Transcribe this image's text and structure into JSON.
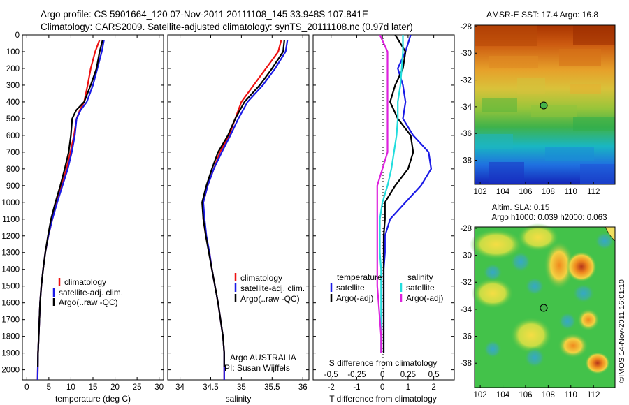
{
  "header": {
    "line1": "Argo profile: CS 5901664_120 07-Nov-2011 20111108_145 33.948S 107.841E",
    "line2": "Climatology: CARS2009. Satellite-adjusted climatology: synTS_20111108.nc (0.97d later)"
  },
  "colors": {
    "climatology": "#ee1111",
    "satellite": "#1a1ae6",
    "argo": "#000000",
    "t_sat": "#1a1ae6",
    "s_sat": "#22dddd",
    "s_argo": "#dd22dd"
  },
  "chart_data": [
    {
      "type": "line",
      "xlabel": "temperature (deg C)",
      "ylabel": "",
      "xlim": [
        -1,
        31
      ],
      "ylim": [
        2060,
        0
      ],
      "y_inverted": true,
      "xticks": [
        0,
        5,
        10,
        15,
        20,
        25,
        30
      ],
      "yticks": [
        0,
        100,
        200,
        300,
        400,
        500,
        600,
        700,
        800,
        900,
        1000,
        1100,
        1200,
        1300,
        1400,
        1500,
        1600,
        1700,
        1800,
        1900,
        2000
      ],
      "legend": [
        "climatology",
        "satellite-adj. clim.",
        "Argo(..raw -QC)"
      ],
      "series": [
        {
          "name": "climatology",
          "color": "#ee1111",
          "x": [
            16.5,
            15.5,
            14.5,
            13.8,
            13.0,
            12.0,
            11.3,
            10.7,
            9.9,
            9.0,
            7.9,
            6.8,
            5.8,
            4.9,
            4.2,
            3.7,
            3.3,
            3.0,
            2.7,
            2.55,
            2.45
          ],
          "y": [
            30,
            100,
            200,
            300,
            400,
            450,
            500,
            600,
            700,
            800,
            900,
            1000,
            1100,
            1200,
            1300,
            1400,
            1500,
            1600,
            1800,
            1900,
            2060
          ]
        },
        {
          "name": "satellite-adj. clim.",
          "color": "#1a1ae6",
          "x": [
            17.5,
            17.0,
            16.0,
            15.0,
            13.6,
            12.2,
            11.3,
            10.9,
            10.2,
            9.3,
            8.1,
            6.9,
            5.8,
            4.9,
            4.2,
            3.7,
            3.3,
            3.0,
            2.7,
            2.55,
            2.45
          ],
          "y": [
            30,
            100,
            200,
            300,
            400,
            450,
            500,
            600,
            700,
            800,
            900,
            1000,
            1100,
            1200,
            1300,
            1400,
            1500,
            1600,
            1800,
            1900,
            2060
          ]
        },
        {
          "name": "Argo(..raw -QC)",
          "color": "#000000",
          "x": [
            17.2,
            16.5,
            15.8,
            14.5,
            13.0,
            11.2,
            10.3,
            10.0,
            9.5,
            8.6,
            7.6,
            6.5,
            5.5,
            4.8,
            4.2,
            3.7,
            3.3,
            3.0,
            2.7,
            2.55,
            2.5
          ],
          "y": [
            30,
            100,
            200,
            300,
            400,
            450,
            500,
            600,
            700,
            800,
            900,
            1000,
            1100,
            1200,
            1300,
            1400,
            1500,
            1600,
            1800,
            1900,
            1985
          ]
        }
      ]
    },
    {
      "type": "line",
      "xlabel": "salinity",
      "ylabel": "",
      "xlim": [
        33.8,
        36.1
      ],
      "ylim": [
        2060,
        0
      ],
      "y_inverted": true,
      "xticks": [
        34,
        34.5,
        35,
        35.5,
        36
      ],
      "legend": [
        "climatology",
        "satellite-adj. clim.",
        "Argo(..raw -QC)"
      ],
      "annotation": [
        "Argo AUSTRALIA",
        "PI: Susan Wijffels"
      ],
      "series": [
        {
          "name": "climatology",
          "color": "#ee1111",
          "x": [
            35.65,
            35.6,
            35.4,
            35.2,
            35.0,
            34.9,
            34.8,
            34.65,
            34.55,
            34.45,
            34.38,
            34.38,
            34.42,
            34.48,
            34.52,
            34.57,
            34.62,
            34.66,
            34.7,
            34.72,
            34.72
          ],
          "y": [
            30,
            100,
            200,
            300,
            400,
            500,
            600,
            700,
            800,
            900,
            1000,
            1100,
            1200,
            1300,
            1400,
            1500,
            1600,
            1700,
            1800,
            1900,
            2060
          ]
        },
        {
          "name": "satellite-adj. clim.",
          "color": "#1a1ae6",
          "x": [
            35.75,
            35.72,
            35.55,
            35.35,
            35.1,
            34.95,
            34.82,
            34.68,
            34.55,
            34.45,
            34.38,
            34.4,
            34.43,
            34.48,
            34.52,
            34.57,
            34.62,
            34.66,
            34.7,
            34.72,
            34.72
          ],
          "y": [
            30,
            100,
            200,
            300,
            400,
            500,
            600,
            700,
            800,
            900,
            1000,
            1100,
            1200,
            1300,
            1400,
            1500,
            1600,
            1700,
            1800,
            1900,
            2060
          ]
        },
        {
          "name": "Argo(..raw -QC)",
          "color": "#000000",
          "x": [
            35.7,
            35.68,
            35.5,
            35.3,
            35.05,
            34.9,
            34.78,
            34.62,
            34.52,
            34.43,
            34.36,
            34.38,
            34.42,
            34.47,
            34.52,
            34.57,
            34.62,
            34.66,
            34.7,
            34.72,
            34.72
          ],
          "y": [
            30,
            100,
            200,
            300,
            400,
            500,
            600,
            700,
            800,
            900,
            1000,
            1100,
            1200,
            1300,
            1400,
            1500,
            1600,
            1700,
            1800,
            1900,
            1985
          ]
        }
      ]
    },
    {
      "type": "line",
      "xlabel": "T difference from climatology",
      "xlabel_top": "S difference from climatology",
      "xlim": [
        -2.7,
        2.8
      ],
      "ylim": [
        2060,
        0
      ],
      "y_inverted": true,
      "xticks": [
        -2,
        -1,
        0,
        1,
        2
      ],
      "xticks_salinity": [
        "-0.5",
        "-0.25",
        "0",
        "0.25",
        "0.5"
      ],
      "legend_temperature": {
        "title": "temperature",
        "items": [
          "satellite",
          "Argo(-adj)"
        ]
      },
      "legend_salinity": {
        "title": "salinity",
        "items": [
          "satellite",
          "Argo(-adj)"
        ]
      },
      "series": [
        {
          "name": "temperature satellite",
          "color": "#1a1ae6",
          "x": [
            1.1,
            0.9,
            0.6,
            0.8,
            0.9,
            0.8,
            1.2,
            1.8,
            1.9,
            1.5,
            0.9,
            0.3,
            0.1,
            0.1,
            0.05,
            0.05,
            0.05,
            0.05,
            0.05,
            0.05
          ],
          "y": [
            0,
            100,
            200,
            300,
            400,
            500,
            600,
            700,
            800,
            900,
            1000,
            1100,
            1200,
            1300,
            1400,
            1500,
            1600,
            1700,
            1800,
            1900
          ]
        },
        {
          "name": "temperature Argo(-adj)",
          "color": "#000000",
          "x": [
            0.5,
            0.9,
            0.8,
            0.5,
            0.3,
            0.6,
            1.1,
            1.2,
            1.0,
            0.5,
            0.1,
            0.1,
            0.05,
            0.05,
            0.05,
            0.05,
            0.05,
            0.05,
            0.05,
            0.05
          ],
          "y": [
            0,
            100,
            200,
            300,
            400,
            500,
            600,
            700,
            800,
            900,
            1000,
            1100,
            1200,
            1300,
            1400,
            1500,
            1600,
            1700,
            1800,
            1900
          ]
        },
        {
          "name": "salinity satellite",
          "color": "#22dddd",
          "x": [
            0.8,
            0.8,
            0.75,
            0.7,
            0.6,
            0.6,
            0.55,
            0.45,
            0.35,
            0.2,
            0.0,
            -0.1,
            -0.1,
            -0.1,
            -0.05,
            -0.05,
            -0.05,
            -0.05,
            -0.05,
            -0.05
          ],
          "y": [
            0,
            100,
            200,
            300,
            400,
            500,
            600,
            700,
            800,
            900,
            1000,
            1100,
            1200,
            1300,
            1400,
            1500,
            1600,
            1700,
            1800,
            1900
          ]
        },
        {
          "name": "salinity Argo(-adj)",
          "color": "#dd22dd",
          "x": [
            -0.1,
            0.2,
            0.2,
            0.2,
            0.2,
            0.2,
            0.2,
            0.2,
            0.0,
            -0.2,
            -0.2,
            -0.2,
            -0.2,
            -0.2,
            -0.2,
            -0.2,
            -0.15,
            -0.1,
            -0.05,
            -0.05
          ],
          "y": [
            0,
            100,
            200,
            300,
            400,
            500,
            600,
            700,
            800,
            900,
            1000,
            1100,
            1200,
            1300,
            1400,
            1500,
            1600,
            1700,
            1800,
            1900
          ]
        }
      ]
    },
    {
      "type": "heatmap",
      "title": "AMSR-E SST: 17.4 Argo: 16.8",
      "xlim": [
        101.5,
        113.9
      ],
      "ylim": [
        -39.8,
        -27.9
      ],
      "xticks": [
        102,
        104,
        106,
        108,
        110,
        112
      ],
      "yticks": [
        -28,
        -30,
        -32,
        -34,
        -36,
        -38
      ],
      "marker": {
        "lon": 107.84,
        "lat": -33.95
      }
    },
    {
      "type": "heatmap",
      "title_lines": [
        "Altim. SLA: 0.15",
        "Argo h1000: 0.039 h2000: 0.063"
      ],
      "xlim": [
        101.5,
        113.9
      ],
      "ylim": [
        -39.8,
        -27.9
      ],
      "xticks": [
        102,
        104,
        106,
        108,
        110,
        112
      ],
      "yticks": [
        -28,
        -30,
        -32,
        -34,
        -36,
        -38
      ],
      "marker": {
        "lon": 107.84,
        "lat": -33.95
      }
    }
  ],
  "footer_stamp": "©IMOS 14-Nov-2011 16:01:10"
}
